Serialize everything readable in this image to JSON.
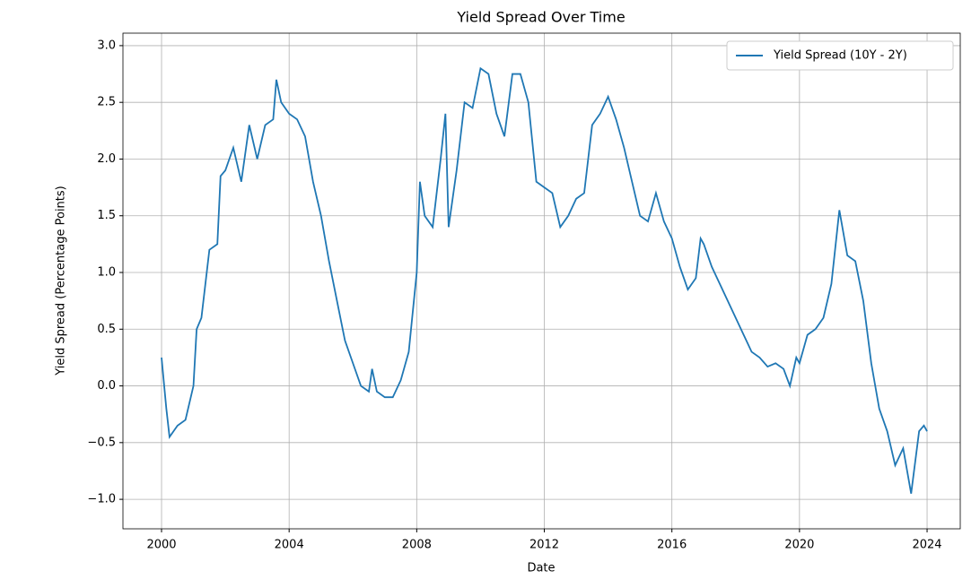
{
  "chart_data": {
    "type": "line",
    "title": "Yield Spread Over Time",
    "x_label": "Date",
    "y_label": "Yield Spread (Percentage Points)",
    "x": [
      2000.0,
      2000.15,
      2000.25,
      2000.5,
      2000.75,
      2001.0,
      2001.1,
      2001.25,
      2001.5,
      2001.75,
      2001.85,
      2002.0,
      2002.25,
      2002.5,
      2002.75,
      2003.0,
      2003.25,
      2003.5,
      2003.6,
      2003.75,
      2004.0,
      2004.25,
      2004.5,
      2004.75,
      2005.0,
      2005.25,
      2005.5,
      2005.75,
      2006.0,
      2006.25,
      2006.5,
      2006.6,
      2006.75,
      2007.0,
      2007.25,
      2007.5,
      2007.75,
      2008.0,
      2008.1,
      2008.25,
      2008.5,
      2008.75,
      2008.9,
      2009.0,
      2009.25,
      2009.5,
      2009.75,
      2010.0,
      2010.25,
      2010.5,
      2010.75,
      2011.0,
      2011.25,
      2011.5,
      2011.75,
      2012.0,
      2012.25,
      2012.5,
      2012.75,
      2013.0,
      2013.25,
      2013.5,
      2013.75,
      2014.0,
      2014.25,
      2014.5,
      2014.75,
      2015.0,
      2015.25,
      2015.5,
      2015.75,
      2016.0,
      2016.25,
      2016.5,
      2016.75,
      2016.9,
      2017.0,
      2017.25,
      2017.5,
      2017.75,
      2018.0,
      2018.25,
      2018.5,
      2018.75,
      2019.0,
      2019.25,
      2019.5,
      2019.7,
      2019.9,
      2020.0,
      2020.25,
      2020.5,
      2020.75,
      2021.0,
      2021.25,
      2021.5,
      2021.75,
      2022.0,
      2022.25,
      2022.5,
      2022.75,
      2023.0,
      2023.25,
      2023.5,
      2023.75,
      2023.9,
      2024.0
    ],
    "series": [
      {
        "name": "Yield Spread (10Y - 2Y)",
        "color": "#1f77b4",
        "values": [
          0.25,
          -0.2,
          -0.45,
          -0.35,
          -0.3,
          0.0,
          0.5,
          0.6,
          1.2,
          1.25,
          1.85,
          1.9,
          2.1,
          1.8,
          2.3,
          2.0,
          2.3,
          2.35,
          2.7,
          2.5,
          2.4,
          2.35,
          2.2,
          1.8,
          1.5,
          1.1,
          0.75,
          0.4,
          0.2,
          0.0,
          -0.05,
          0.15,
          -0.05,
          -0.1,
          -0.1,
          0.05,
          0.3,
          1.0,
          1.8,
          1.5,
          1.4,
          2.0,
          2.4,
          1.4,
          1.9,
          2.5,
          2.45,
          2.8,
          2.75,
          2.4,
          2.2,
          2.75,
          2.75,
          2.5,
          1.8,
          1.75,
          1.7,
          1.4,
          1.5,
          1.65,
          1.7,
          2.3,
          2.4,
          2.55,
          2.35,
          2.1,
          1.8,
          1.5,
          1.45,
          1.7,
          1.45,
          1.3,
          1.05,
          0.85,
          0.95,
          1.3,
          1.25,
          1.05,
          0.9,
          0.75,
          0.6,
          0.45,
          0.3,
          0.25,
          0.17,
          0.2,
          0.15,
          0.0,
          0.25,
          0.2,
          0.45,
          0.5,
          0.6,
          0.9,
          1.55,
          1.15,
          1.1,
          0.75,
          0.2,
          -0.2,
          -0.4,
          -0.7,
          -0.55,
          -0.95,
          -0.4,
          -0.35,
          -0.4
        ]
      }
    ],
    "xlim": [
      1998.79,
      2025.04
    ],
    "xticks": [
      2000,
      2004,
      2008,
      2012,
      2016,
      2020,
      2024
    ],
    "ylim": [
      -1.26,
      3.11
    ],
    "yticks": [
      {
        "value": -1.0,
        "label": "−1.0"
      },
      {
        "value": -0.5,
        "label": "−0.5"
      },
      {
        "value": 0.0,
        "label": "0.0"
      },
      {
        "value": 0.5,
        "label": "0.5"
      },
      {
        "value": 1.0,
        "label": "1.0"
      },
      {
        "value": 1.5,
        "label": "1.5"
      },
      {
        "value": 2.0,
        "label": "2.0"
      },
      {
        "value": 2.5,
        "label": "2.5"
      },
      {
        "value": 3.0,
        "label": "3.0"
      }
    ],
    "grid": true,
    "legend": "upper right"
  }
}
